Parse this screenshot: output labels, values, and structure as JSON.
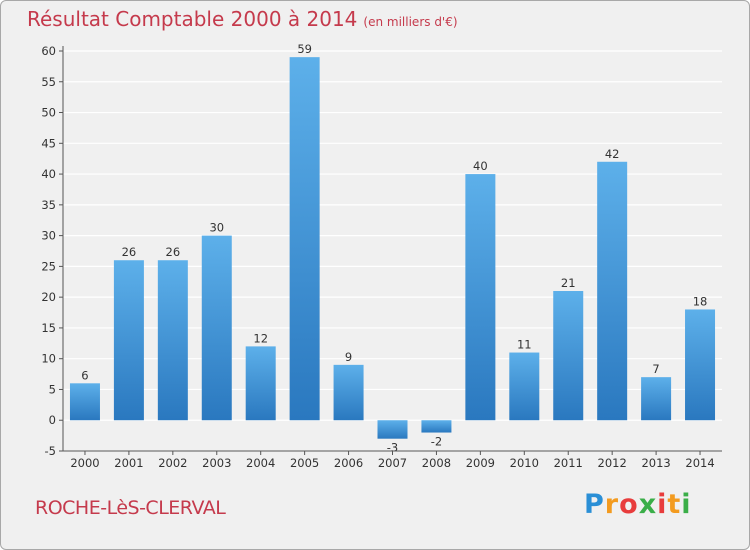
{
  "chart_data": {
    "type": "bar",
    "title": "Résultat Comptable 2000 à 2014",
    "subtitle": "(en milliers d'€)",
    "categories": [
      "2000",
      "2001",
      "2002",
      "2003",
      "2004",
      "2005",
      "2006",
      "2007",
      "2008",
      "2009",
      "2010",
      "2011",
      "2012",
      "2013",
      "2014"
    ],
    "values": [
      6,
      26,
      26,
      30,
      12,
      59,
      9,
      -3,
      -2,
      40,
      11,
      21,
      42,
      7,
      18
    ],
    "xlabel": "",
    "ylabel": "",
    "ylim": [
      -5,
      60
    ],
    "yticks": [
      -5,
      0,
      5,
      10,
      15,
      20,
      25,
      30,
      35,
      40,
      45,
      50,
      55,
      60
    ],
    "grid": true,
    "legend": "none"
  },
  "footer": {
    "commune": "ROCHE-LèS-CLERVAL",
    "logo": {
      "letters": [
        "P",
        "r",
        "o",
        "x",
        "i",
        "t",
        "i"
      ],
      "colors": [
        "#2a8fd6",
        "#f39b1f",
        "#e83c3c",
        "#3aae48",
        "#e83c3c",
        "#f39b1f",
        "#3aae48"
      ]
    }
  },
  "colors": {
    "title": "#c53a4c",
    "bar_light": "#5db0ea",
    "bar_dark": "#2a78bf",
    "grid": "#ffffff",
    "background": "#f0f0f0"
  }
}
